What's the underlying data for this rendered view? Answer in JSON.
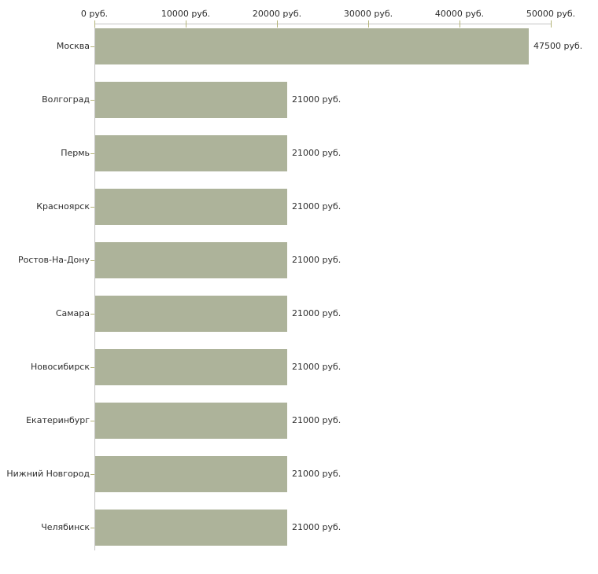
{
  "chart_data": {
    "type": "bar",
    "orientation": "horizontal",
    "title": "",
    "categories": [
      "Москва",
      "Волгоград",
      "Пермь",
      "Красноярск",
      "Ростов-На-Дону",
      "Самара",
      "Новосибирск",
      "Екатеринбург",
      "Нижний Новгород",
      "Челябинск"
    ],
    "values": [
      47500,
      21000,
      21000,
      21000,
      21000,
      21000,
      21000,
      21000,
      21000,
      21000
    ],
    "value_labels": [
      "47500 руб.",
      "21000 руб.",
      "21000 руб.",
      "21000 руб.",
      "21000 руб.",
      "21000 руб.",
      "21000 руб.",
      "21000 руб.",
      "21000 руб.",
      "21000 руб."
    ],
    "x_axis": {
      "position": "top",
      "min": 0,
      "max": 50000,
      "tick_interval": 10000,
      "tick_values": [
        0,
        10000,
        20000,
        30000,
        40000,
        50000
      ],
      "tick_labels": [
        "0 руб.",
        "10000 руб.",
        "20000 руб.",
        "30000 руб.",
        "40000 руб.",
        "50000 руб."
      ],
      "unit": "руб."
    },
    "ylabel": "",
    "xlabel": "",
    "legend": "none",
    "grid": "off",
    "colors": {
      "bar": "#adb39a",
      "axis_line": "#c3c3c3",
      "tick": "#b4b478",
      "text": "#2d2d2d",
      "background": "#ffffff"
    }
  }
}
